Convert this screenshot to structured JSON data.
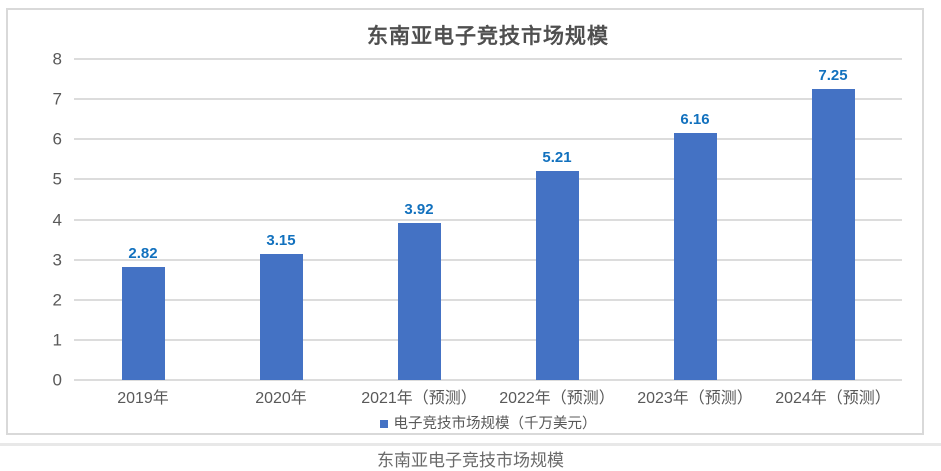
{
  "caption_partial": "东南亚电子竞技市场规模",
  "chart_data": {
    "type": "bar",
    "title": "东南亚电子竞技市场规模",
    "legend": "电子竞技市场规模（千万美元）",
    "legend_position": "bottom",
    "categories": [
      "2019年",
      "2020年",
      "2021年（预测）",
      "2022年（预测）",
      "2023年（预测）",
      "2024年（预测）"
    ],
    "values": [
      2.82,
      3.15,
      3.92,
      5.21,
      6.16,
      7.25
    ],
    "value_labels": [
      "2.82",
      "3.15",
      "3.92",
      "5.21",
      "6.16",
      "7.25"
    ],
    "xlabel": "",
    "ylabel": "",
    "ylim": [
      0,
      8
    ],
    "ytick_step": 1,
    "yticks": [
      0,
      1,
      2,
      3,
      4,
      5,
      6,
      7,
      8
    ],
    "grid": "horizontal",
    "bar_color": "#4472C4",
    "value_label_color": "#1271BE",
    "axis_text_color": "#595959",
    "gridline_color": "#DCDCDC",
    "card_border_color": "#D9D9D9"
  }
}
